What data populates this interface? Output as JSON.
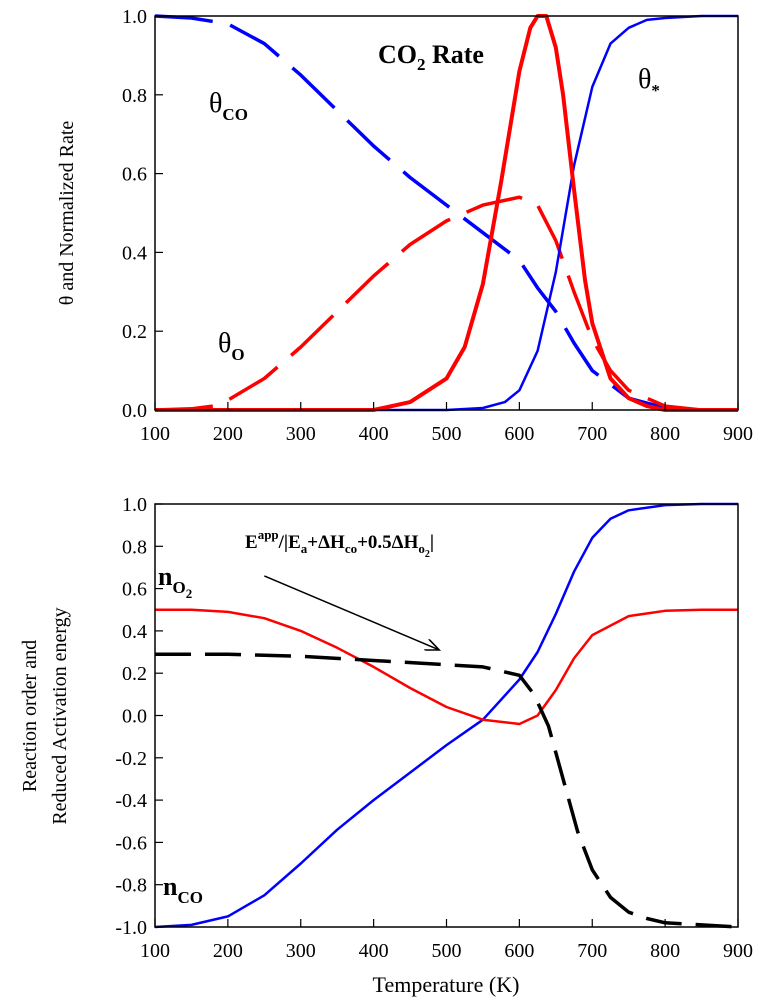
{
  "chart_data": [
    {
      "type": "line",
      "ylabel": "θ and Normalized Rate",
      "xlabel": "",
      "xlim": [
        100,
        900
      ],
      "ylim": [
        0,
        1
      ],
      "xticks": [
        "100",
        "200",
        "300",
        "400",
        "500",
        "600",
        "700",
        "800",
        "900"
      ],
      "yticks": [
        "0.0",
        "0.2",
        "0.4",
        "0.6",
        "0.8",
        "1.0"
      ],
      "grid": false,
      "annotations": {
        "theta_co": {
          "main": "θ",
          "sub": "CO"
        },
        "theta_o": {
          "main": "θ",
          "sub": "O"
        },
        "theta_star": {
          "main": "θ",
          "sub": "*"
        },
        "rate": {
          "pre": "CO",
          "sub": "2",
          "post": " Rate"
        }
      },
      "series": [
        {
          "id": "theta_co",
          "color": "#0000ff",
          "dashed": true,
          "x": [
            100,
            150,
            200,
            250,
            300,
            350,
            400,
            450,
            500,
            550,
            600,
            625,
            650,
            675,
            700,
            750,
            800,
            850,
            900
          ],
          "y": [
            1.0,
            0.995,
            0.98,
            0.93,
            0.85,
            0.76,
            0.67,
            0.59,
            0.52,
            0.45,
            0.38,
            0.31,
            0.25,
            0.17,
            0.1,
            0.03,
            0.005,
            0.0,
            0.0
          ]
        },
        {
          "id": "theta_o",
          "color": "#ff0000",
          "dashed": true,
          "x": [
            100,
            150,
            180,
            200,
            250,
            300,
            350,
            400,
            450,
            500,
            550,
            600,
            625,
            650,
            675,
            700,
            725,
            750,
            800,
            850,
            900
          ],
          "y": [
            0.0,
            0.003,
            0.01,
            0.025,
            0.08,
            0.16,
            0.25,
            0.34,
            0.42,
            0.48,
            0.52,
            0.54,
            0.52,
            0.43,
            0.3,
            0.18,
            0.1,
            0.05,
            0.01,
            0.0,
            0.0
          ]
        },
        {
          "id": "theta_star",
          "color": "#0000ff",
          "dashed": false,
          "x": [
            100,
            500,
            550,
            580,
            600,
            625,
            650,
            675,
            700,
            725,
            750,
            775,
            800,
            850,
            900
          ],
          "y": [
            0.0,
            0.0,
            0.005,
            0.02,
            0.05,
            0.15,
            0.35,
            0.62,
            0.82,
            0.93,
            0.97,
            0.99,
            0.995,
            1.0,
            1.0
          ]
        },
        {
          "id": "rate",
          "color": "#ff0000",
          "dashed": false,
          "bold": true,
          "x": [
            100,
            400,
            450,
            500,
            525,
            550,
            575,
            600,
            615,
            625,
            637,
            650,
            660,
            675,
            690,
            700,
            725,
            750,
            775,
            800,
            900
          ],
          "y": [
            0.0,
            0.0,
            0.02,
            0.08,
            0.16,
            0.32,
            0.58,
            0.86,
            0.97,
            1.0,
            1.0,
            0.92,
            0.8,
            0.56,
            0.33,
            0.22,
            0.08,
            0.03,
            0.01,
            0.0,
            0.0
          ]
        }
      ]
    },
    {
      "type": "line",
      "ylabel": "Reaction order and",
      "ylabel2": "Reduced  Activation energy",
      "xlabel": "Temperature (K)",
      "xlim": [
        100,
        900
      ],
      "ylim": [
        -1,
        1
      ],
      "xticks": [
        "100",
        "200",
        "300",
        "400",
        "500",
        "600",
        "700",
        "800",
        "900"
      ],
      "yticks": [
        "-1.0",
        "-0.8",
        "-0.6",
        "-0.4",
        "-0.2",
        "0.0",
        "0.2",
        "0.4",
        "0.6",
        "0.8",
        "1.0"
      ],
      "grid": false,
      "annotations": {
        "n_o2": {
          "main": "n",
          "sub": "O",
          "subsub": "2"
        },
        "n_co": {
          "main": "n",
          "sub": "CO"
        },
        "eapp": {
          "p1": "E",
          "sup": "app",
          "p2": "/|E",
          "s1": "a",
          "p3": "+ΔH",
          "s2": "co",
          "p4": "+0.5ΔH",
          "s3": "o",
          "s3sub": "2",
          "p5": "|"
        }
      },
      "series": [
        {
          "id": "n_co",
          "color": "#0000ff",
          "dashed": false,
          "x": [
            100,
            150,
            200,
            250,
            300,
            350,
            400,
            450,
            500,
            550,
            600,
            625,
            650,
            675,
            700,
            725,
            750,
            800,
            850,
            900
          ],
          "y": [
            -1.0,
            -0.99,
            -0.95,
            -0.85,
            -0.7,
            -0.54,
            -0.4,
            -0.27,
            -0.14,
            -0.02,
            0.17,
            0.3,
            0.48,
            0.68,
            0.84,
            0.93,
            0.97,
            0.995,
            1.0,
            1.0
          ]
        },
        {
          "id": "n_o2",
          "color": "#ff0000",
          "dashed": false,
          "x": [
            100,
            150,
            200,
            250,
            300,
            350,
            400,
            450,
            500,
            550,
            600,
            625,
            650,
            675,
            700,
            750,
            800,
            850,
            900
          ],
          "y": [
            0.5,
            0.5,
            0.49,
            0.46,
            0.4,
            0.32,
            0.23,
            0.13,
            0.04,
            -0.02,
            -0.04,
            0.0,
            0.12,
            0.27,
            0.38,
            0.47,
            0.495,
            0.5,
            0.5
          ]
        },
        {
          "id": "eapp",
          "color": "#000000",
          "dashed": true,
          "x": [
            100,
            200,
            300,
            400,
            500,
            550,
            600,
            620,
            640,
            660,
            680,
            700,
            725,
            750,
            775,
            800,
            850,
            900
          ],
          "y": [
            0.29,
            0.29,
            0.28,
            0.26,
            0.24,
            0.23,
            0.19,
            0.1,
            -0.05,
            -0.3,
            -0.55,
            -0.73,
            -0.86,
            -0.93,
            -0.96,
            -0.98,
            -0.99,
            -1.0
          ]
        }
      ],
      "arrow": {
        "from": [
          250,
          0.66
        ],
        "to": [
          490,
          0.31
        ]
      }
    }
  ]
}
